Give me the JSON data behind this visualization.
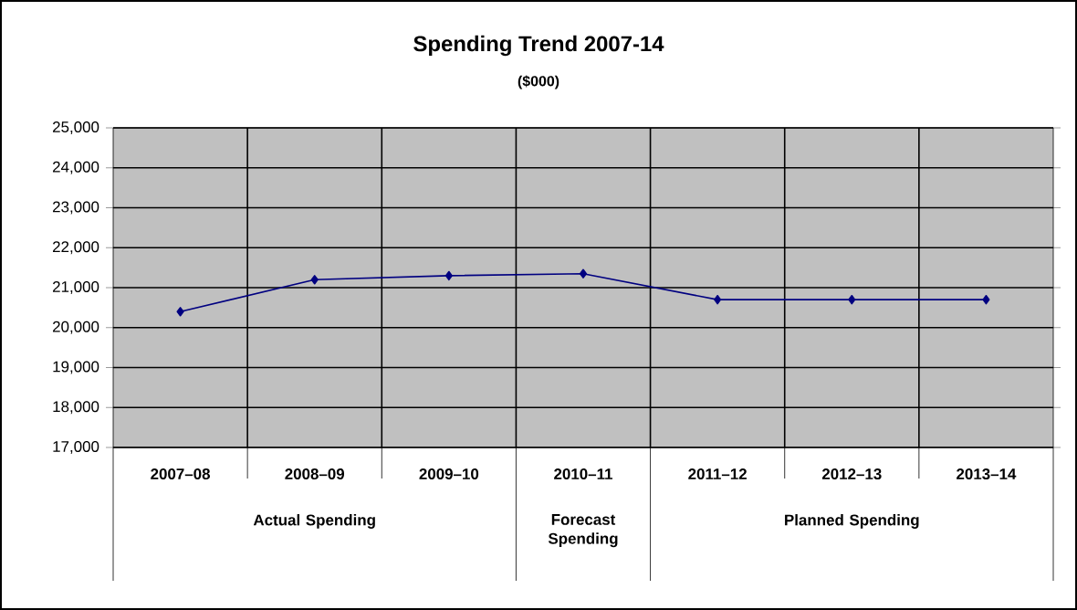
{
  "chart_data": {
    "type": "line",
    "title": "Spending Trend 2007-14",
    "subtitle": "($000)",
    "categories": [
      "2007–08",
      "2008–09",
      "2009–10",
      "2010–11",
      "2011–12",
      "2012–13",
      "2013–14"
    ],
    "series": [
      {
        "color": "#000080",
        "values": [
          20400,
          21200,
          21300,
          21350,
          20700,
          20700,
          20700
        ]
      }
    ],
    "ylim": [
      17000,
      25000
    ],
    "yticks": [
      {
        "value": 17000,
        "label": "17,000"
      },
      {
        "value": 18000,
        "label": "18,000"
      },
      {
        "value": 19000,
        "label": "19,000"
      },
      {
        "value": 20000,
        "label": "20,000"
      },
      {
        "value": 21000,
        "label": "21,000"
      },
      {
        "value": 22000,
        "label": "22,000"
      },
      {
        "value": 23000,
        "label": "23,000"
      },
      {
        "value": 24000,
        "label": "24,000"
      },
      {
        "value": 25000,
        "label": "25,000"
      }
    ],
    "grid": true,
    "marker": "diamond",
    "line_style": "solid",
    "annotations": [
      "Actual Spending",
      "Forecast Spending",
      "Planned Spending"
    ]
  }
}
